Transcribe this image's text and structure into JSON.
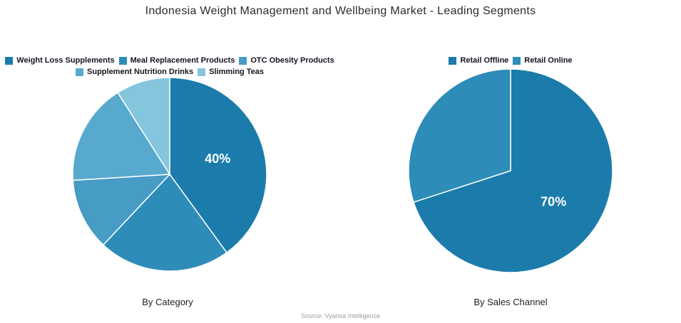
{
  "page": {
    "title": "Indonesia Weight Management and Wellbeing Market - Leading Segments",
    "source": "Source: Vyansa Intelligence"
  },
  "chart_data": [
    {
      "type": "pie",
      "title": "By Category",
      "labels": [
        "Weight Loss Supplements",
        "Meal Replacement Products",
        "OTC Obesity Products",
        "Supplement Nutrition Drinks",
        "Slimming Teas"
      ],
      "values": [
        40,
        22,
        12,
        17,
        9
      ],
      "colors": [
        "#1b7cab",
        "#2d8cb8",
        "#469cc4",
        "#57aacd",
        "#85c5dd"
      ],
      "data_labels": [
        "40%",
        "",
        "",
        "",
        ""
      ],
      "data_label_color": "#ffffff",
      "start_angle_deg": 0,
      "direction": "clockwise",
      "legend_position": "top",
      "slice_border_color": "#ffffff"
    },
    {
      "type": "pie",
      "title": "By Sales Channel",
      "labels": [
        "Retail Offline",
        "Retail Online"
      ],
      "values": [
        70,
        30
      ],
      "colors": [
        "#1b7cab",
        "#2d8cb8"
      ],
      "data_labels": [
        "70%",
        ""
      ],
      "data_label_color": "#ffffff",
      "start_angle_deg": 0,
      "direction": "clockwise",
      "legend_position": "top",
      "slice_border_color": "#ffffff"
    }
  ]
}
